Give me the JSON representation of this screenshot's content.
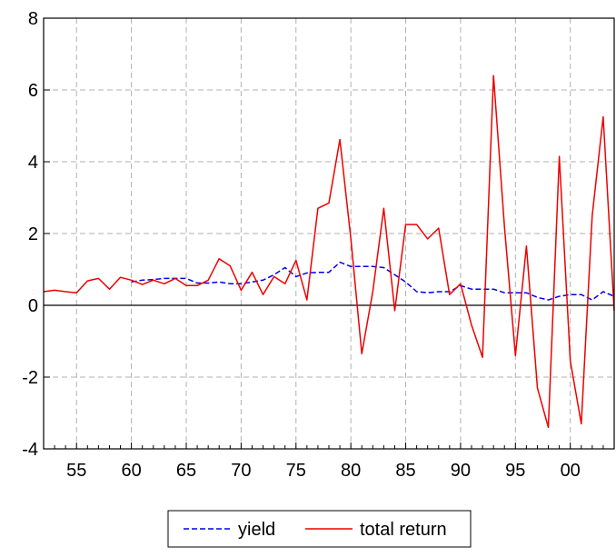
{
  "chart_data": {
    "type": "line",
    "title": "",
    "xlabel": "",
    "ylabel": "",
    "xlim": [
      1952,
      2004
    ],
    "ylim": [
      -4,
      8
    ],
    "y_ticks": [
      -4,
      -2,
      0,
      2,
      4,
      6,
      8
    ],
    "y_tick_labels": [
      "-4",
      "-2",
      "0",
      "2",
      "4",
      "6",
      "8"
    ],
    "x_ticks": [
      1955,
      1960,
      1965,
      1970,
      1975,
      1980,
      1985,
      1990,
      1995,
      2000
    ],
    "x_tick_labels": [
      "55",
      "60",
      "65",
      "70",
      "75",
      "80",
      "85",
      "90",
      "95",
      "00"
    ],
    "grid": true,
    "legend_position": "bottom",
    "colors": {
      "yield": "#0000ee",
      "total_return": "#ee0000",
      "zero_line": "#000000",
      "grid": "#b0b0b0"
    },
    "series": [
      {
        "name": "yield",
        "style": "dashed",
        "x": [
          1960,
          1961,
          1962,
          1963,
          1964,
          1965,
          1966,
          1967,
          1968,
          1969,
          1970,
          1971,
          1972,
          1973,
          1974,
          1975,
          1976,
          1977,
          1978,
          1979,
          1980,
          1981,
          1982,
          1983,
          1984,
          1985,
          1986,
          1987,
          1988,
          1989,
          1990,
          1991,
          1992,
          1993,
          1994,
          1995,
          1996,
          1997,
          1998,
          1999,
          2000,
          2001,
          2002,
          2003,
          2004
        ],
        "values": [
          0.65,
          0.7,
          0.72,
          0.75,
          0.75,
          0.75,
          0.62,
          0.62,
          0.65,
          0.6,
          0.6,
          0.65,
          0.7,
          0.85,
          1.05,
          0.8,
          0.9,
          0.92,
          0.92,
          1.2,
          1.08,
          1.08,
          1.08,
          1.05,
          0.85,
          0.65,
          0.38,
          0.35,
          0.38,
          0.38,
          0.55,
          0.45,
          0.45,
          0.45,
          0.35,
          0.35,
          0.35,
          0.22,
          0.15,
          0.25,
          0.3,
          0.3,
          0.15,
          0.38,
          0.25
        ]
      },
      {
        "name": "total return",
        "style": "solid",
        "x": [
          1952,
          1953,
          1954,
          1955,
          1956,
          1957,
          1958,
          1959,
          1960,
          1961,
          1962,
          1963,
          1964,
          1965,
          1966,
          1967,
          1968,
          1969,
          1970,
          1971,
          1972,
          1973,
          1974,
          1975,
          1976,
          1977,
          1978,
          1979,
          1980,
          1981,
          1982,
          1983,
          1984,
          1985,
          1986,
          1987,
          1988,
          1989,
          1990,
          1991,
          1992,
          1993,
          1994,
          1995,
          1996,
          1997,
          1998,
          1999,
          2000,
          2001,
          2002,
          2003,
          2004
        ],
        "values": [
          0.38,
          0.42,
          0.38,
          0.35,
          0.68,
          0.75,
          0.45,
          0.78,
          0.7,
          0.58,
          0.7,
          0.6,
          0.75,
          0.55,
          0.55,
          0.7,
          1.3,
          1.1,
          0.42,
          0.92,
          0.3,
          0.8,
          0.6,
          1.25,
          0.15,
          2.7,
          2.85,
          4.62,
          1.85,
          -1.35,
          0.38,
          2.7,
          -0.15,
          2.25,
          2.25,
          1.85,
          2.15,
          0.3,
          0.6,
          -0.55,
          -1.45,
          6.4,
          2.2,
          -1.4,
          1.65,
          -2.3,
          -3.4,
          4.15,
          -1.55,
          -3.3,
          2.5,
          5.25,
          -0.15
        ]
      }
    ]
  }
}
